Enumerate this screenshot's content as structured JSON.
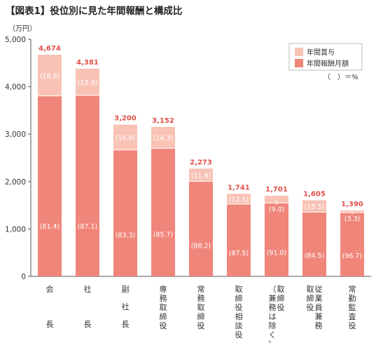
{
  "title": "【図表1】役位別に見た年間報酬と構成比",
  "unit_label": "（万円）",
  "note": "（　）＝%",
  "colors": {
    "bonus": "#f8c3b5",
    "monthly": "#f0857a",
    "total": "#e0504a"
  },
  "chart_data": {
    "type": "bar",
    "stacked": true,
    "ylim": [
      0,
      5000
    ],
    "yticks": [
      "0",
      "1,000",
      "2,000",
      "3,000",
      "4,000",
      "5,000"
    ],
    "ytick_values": [
      0,
      1000,
      2000,
      3000,
      4000,
      5000
    ],
    "legend_position": "top-right",
    "grid": false,
    "categories": [
      {
        "lines": [
          "会",
          "",
          "長"
        ]
      },
      {
        "lines": [
          "社",
          "",
          "長"
        ]
      },
      {
        "lines": [
          "副",
          "社",
          "長"
        ]
      },
      {
        "lines": [
          "専務取締役"
        ]
      },
      {
        "lines": [
          "常務取締役"
        ]
      },
      {
        "lines": [
          "取締役相談役"
        ]
      },
      {
        "lines": [
          "取締役",
          "（兼務は除く）"
        ]
      },
      {
        "lines": [
          "従業員兼務",
          "取締役"
        ]
      },
      {
        "lines": [
          "常勤監査役"
        ]
      }
    ],
    "totals": [
      4674,
      4381,
      3200,
      3152,
      2273,
      1741,
      1701,
      1605,
      1390
    ],
    "total_labels": [
      "4,674",
      "4,381",
      "3,200",
      "3,152",
      "2,273",
      "1,741",
      "1,701",
      "1,605",
      "1,390"
    ],
    "series": [
      {
        "name": "年間報酬月額",
        "pct": [
          81.4,
          87.1,
          83.3,
          85.7,
          88.2,
          87.5,
          91.0,
          84.5,
          96.7
        ],
        "pct_labels": [
          "(81.4)",
          "(87.1)",
          "(83.3)",
          "(85.7)",
          "(88.2)",
          "(87.5)",
          "(91.0)",
          "(84.5)",
          "(96.7)"
        ]
      },
      {
        "name": "年間賞与",
        "pct": [
          18.6,
          12.9,
          16.8,
          14.3,
          11.8,
          12.5,
          9.0,
          15.5,
          3.3
        ],
        "pct_labels": [
          "(18.6)",
          "(12.9)",
          "(16.8)",
          "(14.3)",
          "(11.8)",
          "(12.5)",
          "(9.0)",
          "(15.5)",
          "(3.3)"
        ]
      }
    ]
  }
}
